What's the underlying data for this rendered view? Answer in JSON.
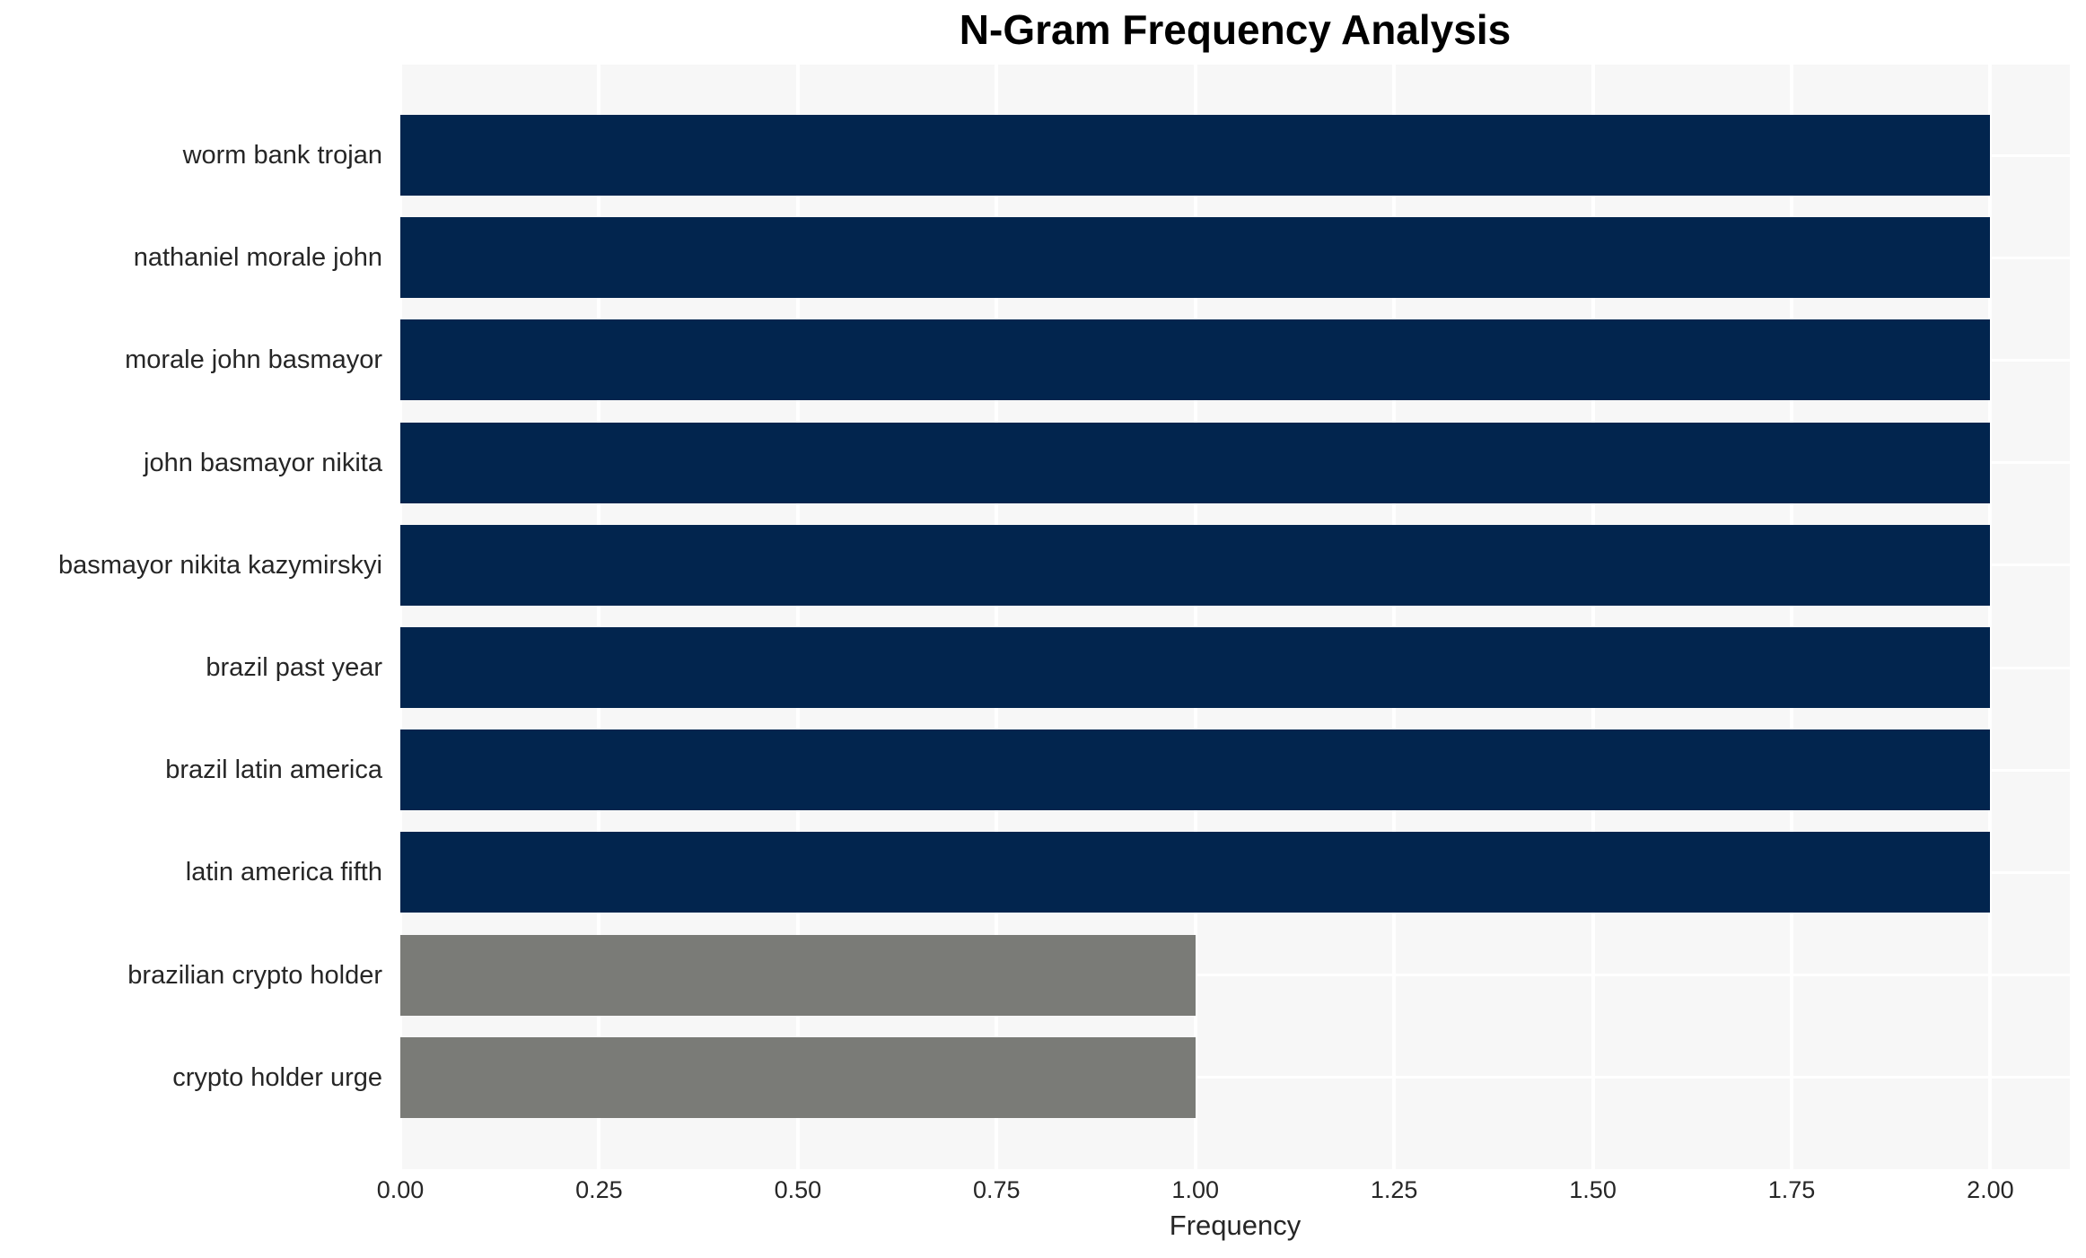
{
  "chart_data": {
    "type": "bar",
    "orientation": "horizontal",
    "title": "N-Gram Frequency Analysis",
    "xlabel": "Frequency",
    "ylabel": "",
    "categories": [
      "worm bank trojan",
      "nathaniel morale john",
      "morale john basmayor",
      "john basmayor nikita",
      "basmayor nikita kazymirskyi",
      "brazil past year",
      "brazil latin america",
      "latin america fifth",
      "brazilian crypto holder",
      "crypto holder urge"
    ],
    "values": [
      2,
      2,
      2,
      2,
      2,
      2,
      2,
      2,
      1,
      1
    ],
    "bar_colors": [
      "#02254e",
      "#02254e",
      "#02254e",
      "#02254e",
      "#02254e",
      "#02254e",
      "#02254e",
      "#02254e",
      "#7a7b77",
      "#7a7b77"
    ],
    "xlim": [
      0,
      2.1
    ],
    "xticks": [
      0,
      0.25,
      0.5,
      0.75,
      1.0,
      1.25,
      1.5,
      1.75,
      2.0
    ],
    "xtick_labels": [
      "0.00",
      "0.25",
      "0.50",
      "0.75",
      "1.00",
      "1.25",
      "1.50",
      "1.75",
      "2.00"
    ],
    "grid": true,
    "legend": false,
    "colors": {
      "bar_high": "#02254e",
      "bar_low": "#7a7b77",
      "plot_background": "#f7f7f7",
      "gridline": "#ffffff",
      "title_text": "#000000",
      "axis_text": "#262626",
      "page_background": "#ffffff"
    }
  }
}
